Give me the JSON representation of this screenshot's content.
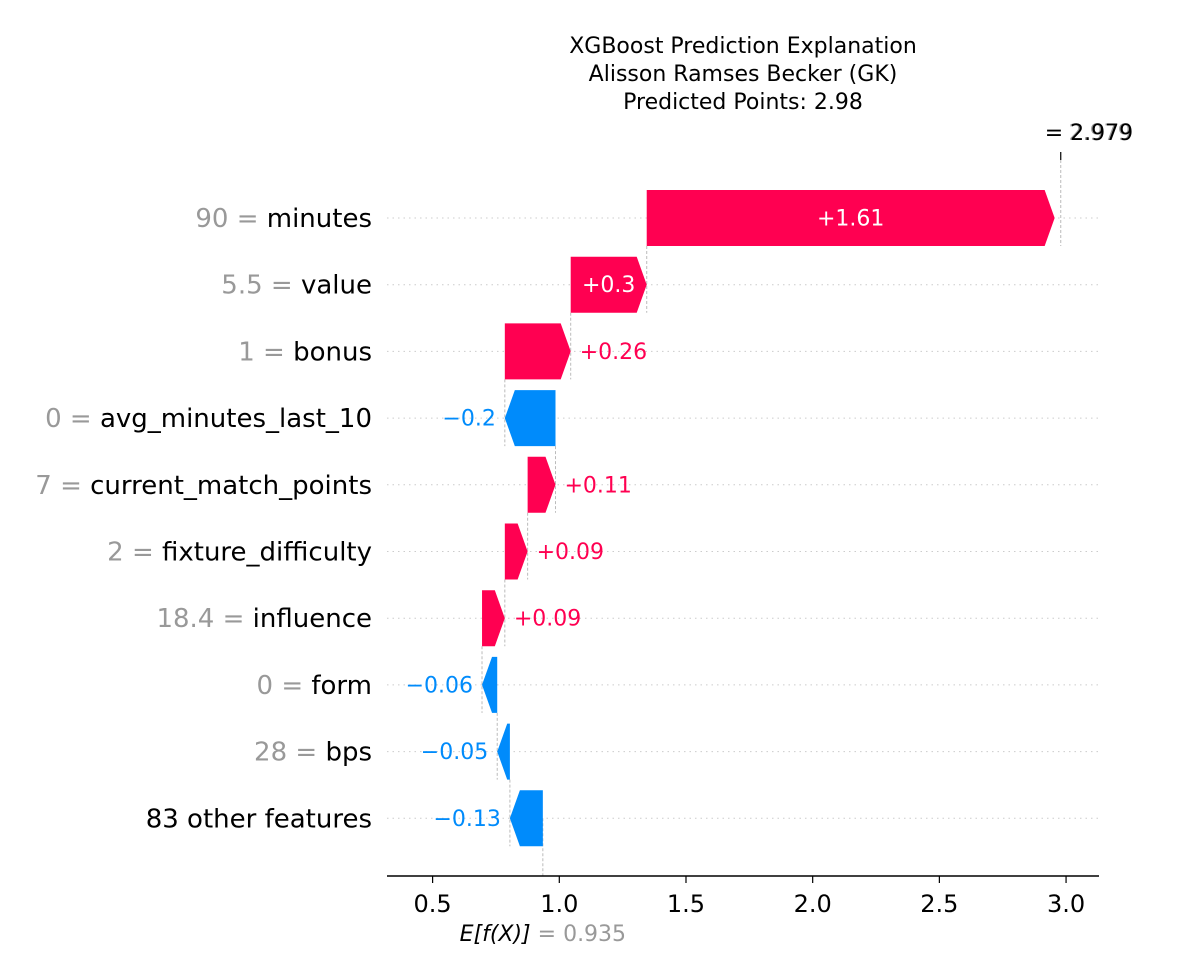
{
  "chart_data": {
    "type": "waterfall",
    "title_lines": [
      "XGBoost Prediction Explanation",
      "Alisson Ramses Becker (GK)",
      "Predicted Points: 2.98"
    ],
    "base_value": 0.935,
    "base_label_text": "= 0.935",
    "base_label_math": "E[f(X)]",
    "output_value": 2.979,
    "output_label_eq": "= 2.979",
    "output_label_value": "2.979",
    "xlim": [
      0.32,
      3.13
    ],
    "xticks": [
      0.5,
      1.0,
      1.5,
      2.0,
      2.5,
      3.0
    ],
    "xtick_labels": [
      "0.5",
      "1.0",
      "1.5",
      "2.0",
      "2.5",
      "3.0"
    ],
    "features": [
      {
        "value_text": "90",
        "name": "minutes",
        "shap": 1.61,
        "label": "+1.61"
      },
      {
        "value_text": "5.5",
        "name": "value",
        "shap": 0.3,
        "label": "+0.3"
      },
      {
        "value_text": "1",
        "name": "bonus",
        "shap": 0.26,
        "label": "+0.26"
      },
      {
        "value_text": "0",
        "name": "avg_minutes_last_10",
        "shap": -0.2,
        "label": "−0.2"
      },
      {
        "value_text": "7",
        "name": "current_match_points",
        "shap": 0.11,
        "label": "+0.11"
      },
      {
        "value_text": "2",
        "name": "fixture_difficulty",
        "shap": 0.09,
        "label": "+0.09"
      },
      {
        "value_text": "18.4",
        "name": "influence",
        "shap": 0.09,
        "label": "+0.09"
      },
      {
        "value_text": "0",
        "name": "form",
        "shap": -0.06,
        "label": "−0.06"
      },
      {
        "value_text": "28",
        "name": "bps",
        "shap": -0.05,
        "label": "−0.05"
      },
      {
        "value_text": "",
        "name": "83 other features",
        "shap": -0.13,
        "label": "−0.13"
      }
    ],
    "feature_separator": " = ",
    "colors": {
      "positive": "#ff0051",
      "negative": "#008bfb",
      "feature_value_gray": "#999999",
      "text": "#000000",
      "grid": "#cccccc"
    }
  }
}
